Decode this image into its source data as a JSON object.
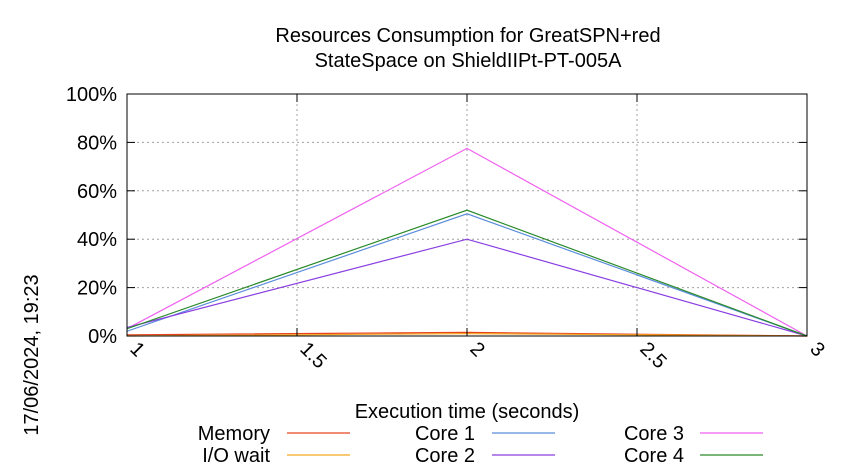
{
  "chart_data": {
    "type": "line",
    "title_lines": [
      "Resources Consumption for GreatSPN+red",
      "StateSpace on ShieldIIPt-PT-005A"
    ],
    "xlabel": "Execution time (seconds)",
    "ylabel": "",
    "side_label": "17/06/2024, 19:23",
    "xlim": [
      1,
      3
    ],
    "ylim": [
      0,
      100
    ],
    "x_ticks": [
      {
        "value": 1,
        "label": "1"
      },
      {
        "value": 1.5,
        "label": "1.5"
      },
      {
        "value": 2,
        "label": "2"
      },
      {
        "value": 2.5,
        "label": "2.5"
      },
      {
        "value": 3,
        "label": "3"
      }
    ],
    "y_ticks": [
      {
        "value": 0,
        "label": "0%"
      },
      {
        "value": 20,
        "label": "20%"
      },
      {
        "value": 40,
        "label": "40%"
      },
      {
        "value": 60,
        "label": "60%"
      },
      {
        "value": 80,
        "label": "80%"
      },
      {
        "value": 100,
        "label": "100%"
      }
    ],
    "grid": true,
    "legend_position": "bottom",
    "x": [
      1,
      2,
      3
    ],
    "series": [
      {
        "name": "Memory",
        "color": "#e8431e",
        "values": [
          0.5,
          1.5,
          0
        ]
      },
      {
        "name": "Core 1",
        "color": "#5b8ddb",
        "values": [
          2,
          50.5,
          0
        ]
      },
      {
        "name": "Core 3",
        "color": "#f060f0",
        "values": [
          3,
          77.5,
          0
        ]
      },
      {
        "name": "I/O wait",
        "color": "#f5a623",
        "values": [
          0,
          1,
          0
        ]
      },
      {
        "name": "Core 2",
        "color": "#8a3fe0",
        "values": [
          3.5,
          40,
          0
        ]
      },
      {
        "name": "Core 4",
        "color": "#2a8a2a",
        "values": [
          3,
          52,
          0
        ]
      }
    ]
  }
}
